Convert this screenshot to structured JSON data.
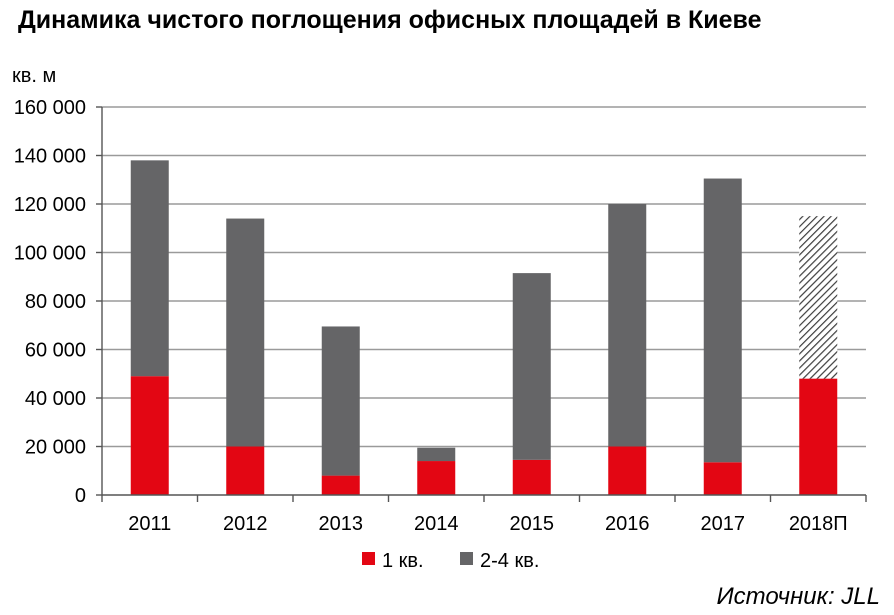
{
  "chart_data": {
    "type": "bar",
    "stacked": true,
    "title": "Динамика чистого поглощения офисных площадей в Киеве",
    "ylabel": "кв. м",
    "xlabel": "",
    "ylim": [
      0,
      160000
    ],
    "yticks": [
      0,
      20000,
      40000,
      60000,
      80000,
      100000,
      120000,
      140000,
      160000
    ],
    "ytick_labels": [
      "0",
      "20 000",
      "40 000",
      "60 000",
      "80 000",
      "100 000",
      "120 000",
      "140 000",
      "160 000"
    ],
    "grid": true,
    "legend_position": "bottom-center",
    "categories": [
      "2011",
      "2012",
      "2013",
      "2014",
      "2015",
      "2016",
      "2017",
      "2018П"
    ],
    "series": [
      {
        "name": "1 кв.",
        "color": "#e30613",
        "values": [
          49000,
          20000,
          8000,
          14000,
          14500,
          20000,
          13500,
          48000
        ]
      },
      {
        "name": "2-4 кв.",
        "color": "#656567",
        "values": [
          89000,
          94000,
          61500,
          5500,
          77000,
          100000,
          117000,
          67000
        ]
      }
    ],
    "forecast_category": "2018П",
    "forecast_pattern": "diagonal-hatch"
  },
  "source": "Источник: JLL"
}
